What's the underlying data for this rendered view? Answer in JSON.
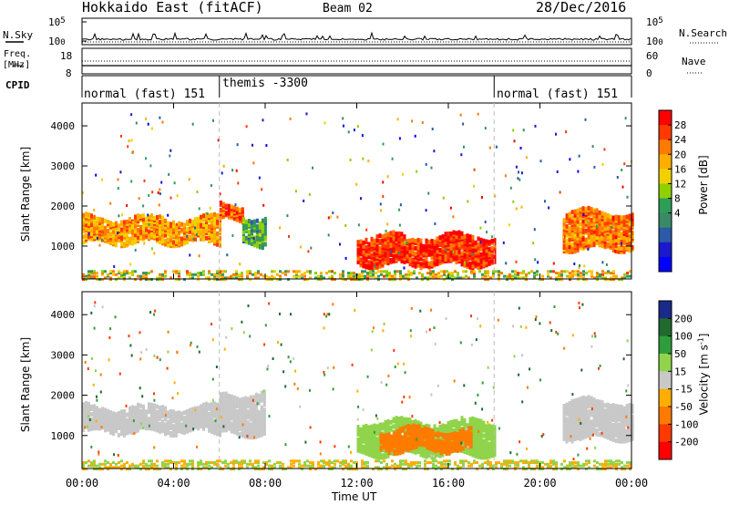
{
  "header": {
    "station": "Hokkaido East (fitACF)",
    "beam": "Beam 02",
    "date": "28/Dec/2016"
  },
  "panels": {
    "nsky": {
      "left_label": "N.Sky",
      "right_label": "N.Search",
      "ticks_top": "10^5",
      "ticks_bottom": "10^0"
    },
    "freq": {
      "left_label_1": "Freq.",
      "left_label_2": "[MHz]",
      "tick_top": "18",
      "tick_bottom": "8",
      "right_label": "Nave",
      "right_tick_top": "60",
      "right_tick_bottom": "0"
    },
    "cpid": {
      "label": "CPID",
      "segments": [
        {
          "label": "normal (fast) 151",
          "start_hour": 0,
          "end_hour": 6
        },
        {
          "label": "themis -3300",
          "start_hour": 6,
          "end_hour": 18
        },
        {
          "label": "normal (fast) 151",
          "start_hour": 18,
          "end_hour": 24
        }
      ]
    }
  },
  "colorbars": {
    "power": {
      "label": "Power [dB]",
      "ticks": [
        "28",
        "24",
        "20",
        "16",
        "12",
        "8",
        "4"
      ],
      "colors": [
        "#ff0000",
        "#ff3a00",
        "#ff7a00",
        "#ffae00",
        "#f2d000",
        "#8fd000",
        "#2e9e57",
        "#3a8a68",
        "#2a5aa8",
        "#1a1acc",
        "#0000ff"
      ]
    },
    "velocity": {
      "label": "Velocity [m s",
      "label_sup": "-1",
      "label_end": "]",
      "ticks": [
        "200",
        "100",
        "50",
        "15",
        "-15",
        "-50",
        "-100",
        "-200"
      ],
      "colors": [
        "#1a2a8a",
        "#1f6a2c",
        "#2e9e3c",
        "#8fd44a",
        "#c8c8c8",
        "#ffae00",
        "#ff7a00",
        "#ff3a00",
        "#ff0000"
      ]
    }
  },
  "chart_data": {
    "type": "heatmap",
    "title": "Hokkaido East (fitACF)",
    "xlabel": "Time UT",
    "ylabel": "Slant Range [km]",
    "xticks": [
      "00:00",
      "04:00",
      "08:00",
      "12:00",
      "16:00",
      "20:00",
      "00:00"
    ],
    "xlim_hours": [
      0,
      24
    ],
    "yticks": [
      "4000",
      "3000",
      "2000",
      "1000"
    ],
    "ylim_km": [
      180,
      4570
    ],
    "grid": false,
    "panels": [
      {
        "name": "Power",
        "units": "dB",
        "scale": [
          0,
          30
        ],
        "regions": [
          {
            "t0": 0.0,
            "t1": 6.0,
            "r0": 1150,
            "r1": 1750,
            "value": 22
          },
          {
            "t0": 6.0,
            "t1": 7.0,
            "r0": 1700,
            "r1": 2100,
            "value": 26
          },
          {
            "t0": 7.0,
            "t1": 8.0,
            "r0": 1100,
            "r1": 1800,
            "value": 12
          },
          {
            "t0": 12.0,
            "t1": 18.0,
            "r0": 600,
            "r1": 1300,
            "value": 28
          },
          {
            "t0": 21.0,
            "t1": 24.0,
            "r0": 1000,
            "r1": 1900,
            "value": 24
          }
        ]
      },
      {
        "name": "Velocity",
        "units": "m s-1",
        "scale": [
          -200,
          200
        ],
        "regions": [
          {
            "t0": 0.0,
            "t1": 6.0,
            "r0": 1150,
            "r1": 1750,
            "value": 0
          },
          {
            "t0": 6.0,
            "t1": 8.0,
            "r0": 1100,
            "r1": 2100,
            "value": 0
          },
          {
            "t0": 12.0,
            "t1": 18.0,
            "r0": 600,
            "r1": 1400,
            "value": 40
          },
          {
            "t0": 13.0,
            "t1": 17.0,
            "r0": 700,
            "r1": 1200,
            "value": -80
          },
          {
            "t0": 21.0,
            "t1": 24.0,
            "r0": 1000,
            "r1": 1900,
            "value": 0
          }
        ]
      }
    ]
  }
}
